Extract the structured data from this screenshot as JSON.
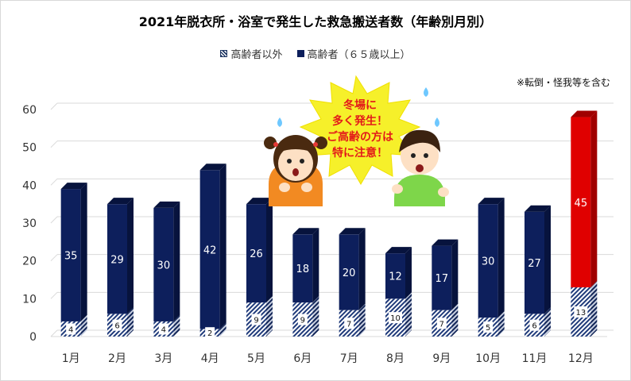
{
  "chart_data": {
    "type": "bar",
    "stacked": true,
    "title": "2021年脱衣所・浴室で発生した救急搬送者数（年齢別月別）",
    "note": "※転倒・怪我等を含む",
    "categories": [
      "1月",
      "2月",
      "3月",
      "4月",
      "5月",
      "6月",
      "7月",
      "8月",
      "9月",
      "10月",
      "11月",
      "12月"
    ],
    "series": [
      {
        "name": "高齢者以外",
        "values": [
          4,
          6,
          4,
          2,
          9,
          9,
          7,
          10,
          7,
          5,
          6,
          13
        ],
        "pattern": "hatched"
      },
      {
        "name": "高齢者（６５歳以上）",
        "values": [
          35,
          29,
          30,
          42,
          26,
          18,
          20,
          12,
          17,
          30,
          27,
          45
        ],
        "color": "#0d1f5c",
        "highlight_color": "#e00000",
        "highlight_index": 11
      }
    ],
    "ylim": [
      0,
      60
    ],
    "yticks": [
      0,
      10,
      20,
      30,
      40,
      50,
      60
    ],
    "grid": true,
    "legend_position": "top",
    "chart_style": "3d-column"
  },
  "callout": {
    "lines": [
      "冬場に",
      "多く発生！",
      "ご高齢の方は",
      "特に注意！"
    ]
  },
  "colors": {
    "elder": "#0d1f5c",
    "elder_side": "#07133d",
    "highlight": "#e00000",
    "highlight_side": "#a00000",
    "burst": "#f6f02a"
  }
}
